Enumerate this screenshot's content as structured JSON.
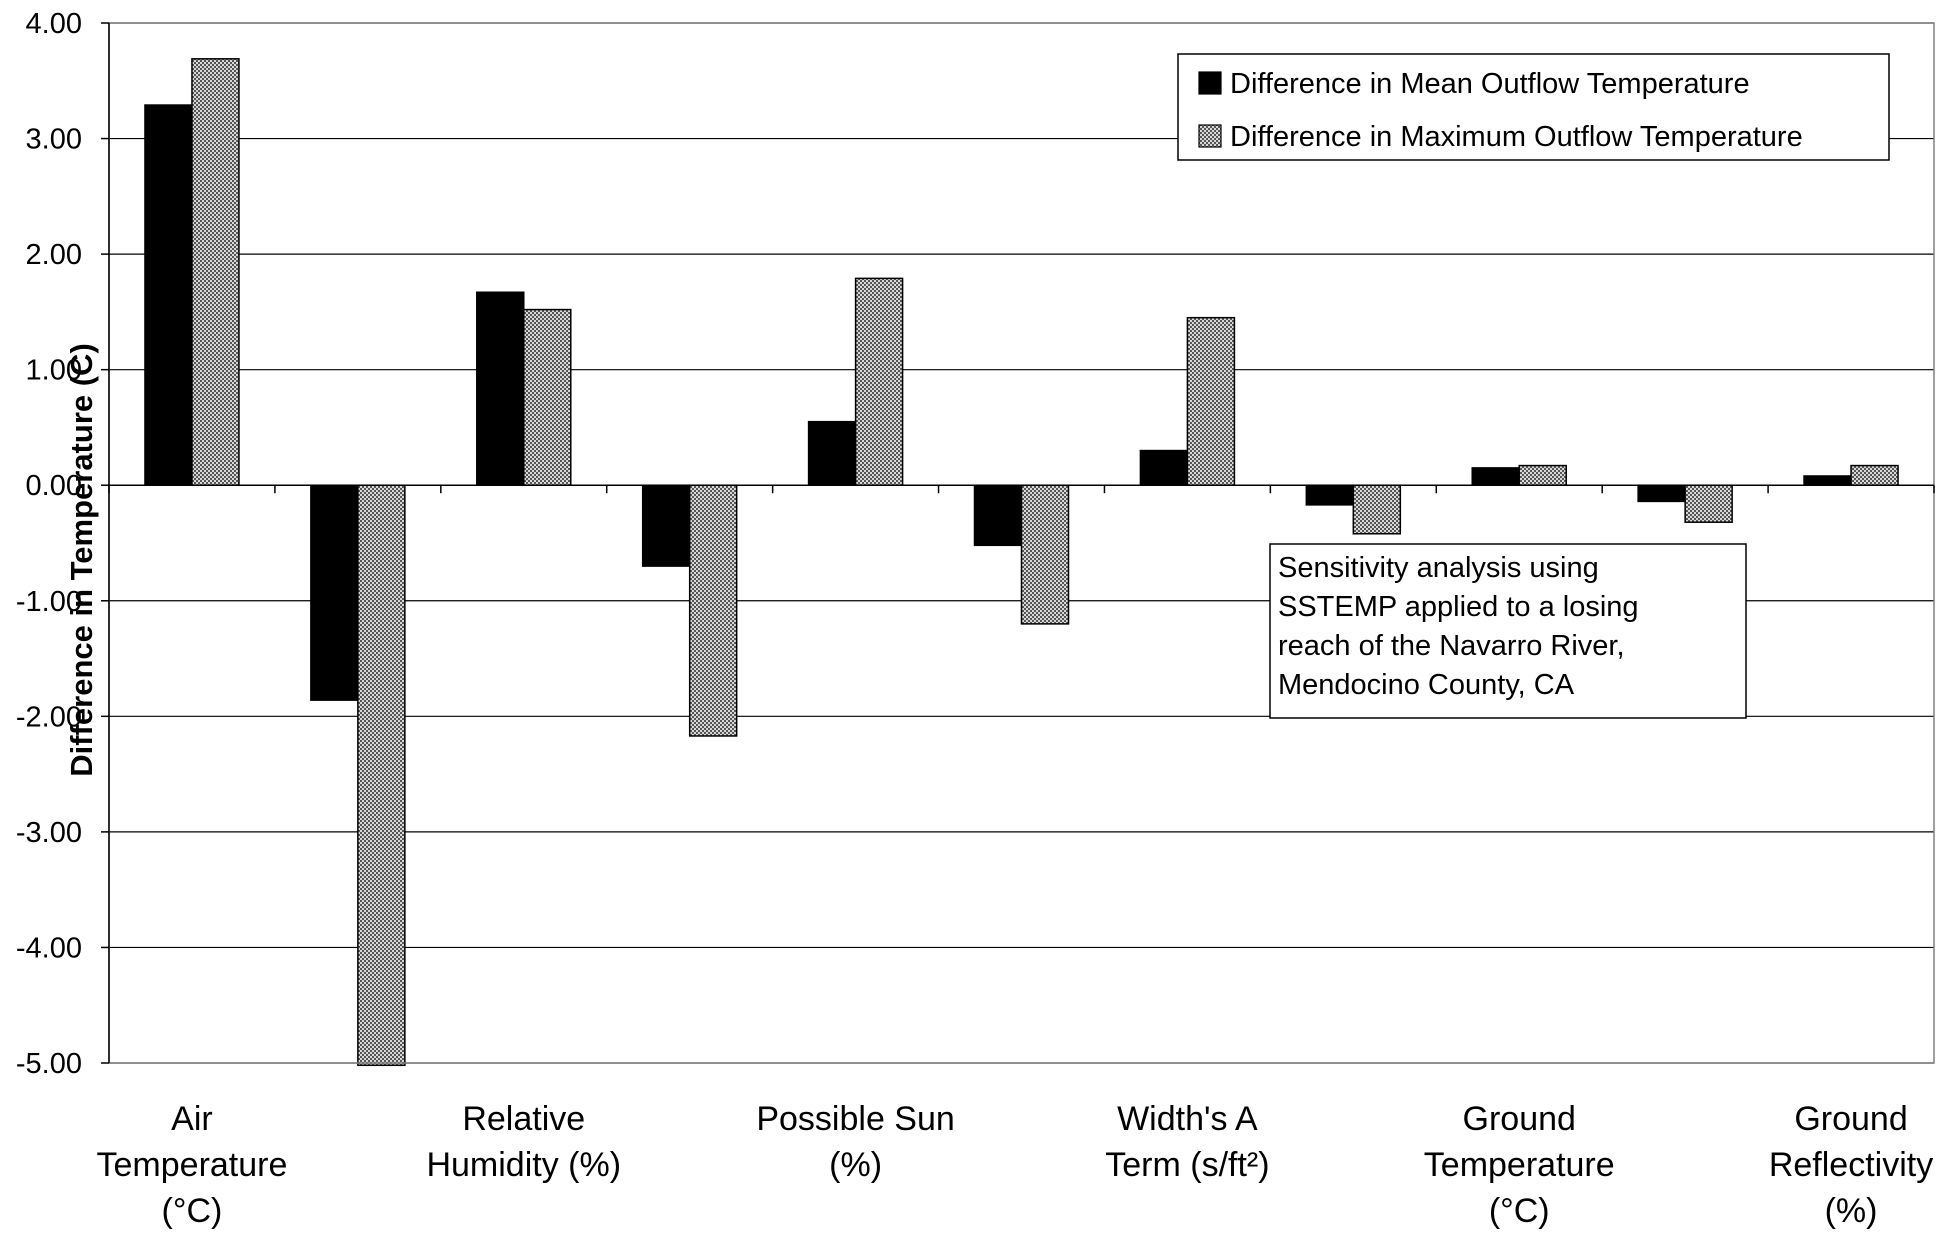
{
  "chart_data": {
    "type": "bar",
    "title": "",
    "xlabel": "",
    "ylabel": "Difference in Temperature (C)",
    "ylim": [
      -5,
      4
    ],
    "yticks": [
      "4.00",
      "3.00",
      "2.00",
      "1.00",
      "0.00",
      "-1.00",
      "-2.00",
      "-3.00",
      "-4.00",
      "-5.00"
    ],
    "grid": true,
    "legend_position": "top-right",
    "categories": [
      "Air Temperature (°C)",
      "",
      "Relative Humidity (%)",
      "",
      "Possible Sun (%)",
      "",
      "Width's A Term (s/ft²)",
      "",
      "Ground Temperature (°C)",
      "",
      "Ground Reflectivity (%)"
    ],
    "category_label_lines": [
      [
        "Air",
        "Temperature",
        "(°C)"
      ],
      [],
      [
        "Relative",
        "Humidity (%)"
      ],
      [],
      [
        "Possible Sun",
        "(%)"
      ],
      [],
      [
        "Width's A",
        "Term (s/ft²)"
      ],
      [],
      [
        "Ground",
        "Temperature",
        "(°C)"
      ],
      [],
      [
        "Ground",
        "Reflectivity",
        "(%)"
      ]
    ],
    "series": [
      {
        "name": "Difference in Mean Outflow Temperature",
        "color": "#000000",
        "pattern": "solid",
        "values": [
          3.29,
          -1.86,
          1.67,
          -0.7,
          0.55,
          -0.52,
          0.3,
          -0.17,
          0.15,
          -0.14,
          0.08
        ]
      },
      {
        "name": "Difference in Maximum Outflow Temperature",
        "color": "#9e9e9e",
        "pattern": "checker",
        "values": [
          3.69,
          -5.02,
          1.52,
          -2.17,
          1.79,
          -1.2,
          1.45,
          -0.42,
          0.17,
          -0.32,
          0.17
        ]
      }
    ],
    "annotation": [
      "Sensitivity analysis using",
      "SSTEMP applied to a losing",
      "reach of the Navarro River,",
      "Mendocino County, CA"
    ]
  }
}
